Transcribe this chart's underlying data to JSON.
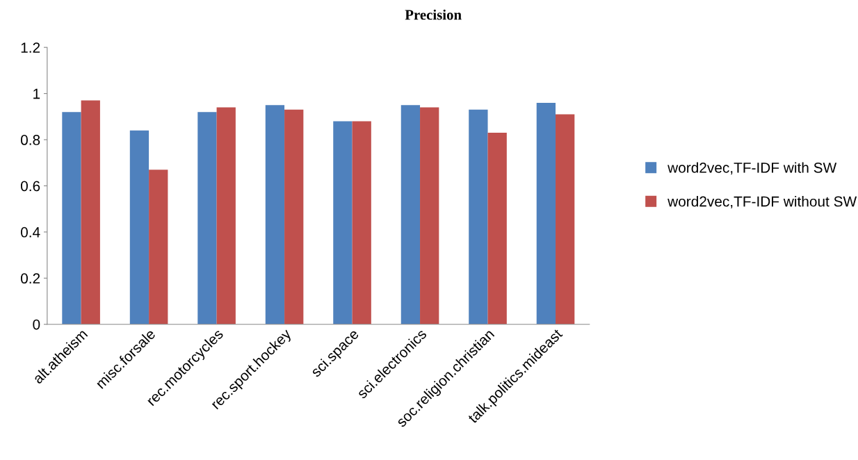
{
  "chart_data": {
    "type": "bar",
    "title": "Precision",
    "categories": [
      "alt.atheism",
      "misc.forsale",
      "rec.motorcycles",
      "rec.sport.hockey",
      "sci.space",
      "sci.electronics",
      "soc.religion.christian",
      "talk.politics.mideast"
    ],
    "series": [
      {
        "name": "word2vec,TF-IDF with SW",
        "color": "#4f81bd",
        "values": [
          0.92,
          0.84,
          0.92,
          0.95,
          0.88,
          0.95,
          0.93,
          0.96
        ]
      },
      {
        "name": "word2vec,TF-IDF without SW",
        "color": "#c0504d",
        "values": [
          0.97,
          0.67,
          0.94,
          0.93,
          0.88,
          0.94,
          0.83,
          0.91
        ]
      }
    ],
    "ylim": [
      0,
      1.2
    ],
    "yticks": [
      0,
      0.2,
      0.4,
      0.6,
      0.8,
      1,
      1.2
    ],
    "grid": false,
    "legend": "right"
  }
}
